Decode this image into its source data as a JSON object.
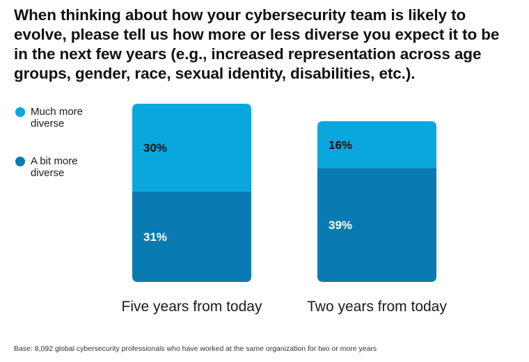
{
  "chart_data": {
    "type": "bar",
    "stacked": true,
    "title": "When thinking about how your cybersecurity team is likely to evolve, please tell us how more or less diverse you expect it to be in the next few years (e.g., increased representation across age groups, gender, race, sexual identity, disabilities, etc.).",
    "categories": [
      "Five years from today",
      "Two years from today"
    ],
    "series": [
      {
        "name": "A bit more diverse",
        "values": [
          31,
          39
        ],
        "labels": [
          "31%",
          "39%"
        ],
        "color": "#0a7bb2",
        "label_color": "#ffffff"
      },
      {
        "name": "Much more diverse",
        "values": [
          30,
          16
        ],
        "labels": [
          "30%",
          "16%"
        ],
        "color": "#0aa6de",
        "label_color": "#111111"
      }
    ],
    "legend": [
      {
        "name": "Much more diverse",
        "color": "#0aa6de"
      },
      {
        "name": "A bit more diverse",
        "color": "#0a7bb2"
      }
    ],
    "xlabel": "",
    "ylabel": "",
    "ylim": [
      0,
      61
    ],
    "grid": false,
    "legend_position": "left"
  },
  "footnote": "Base: 8,092 global cybersecurity professionals who have worked at the same organization for two or more years"
}
